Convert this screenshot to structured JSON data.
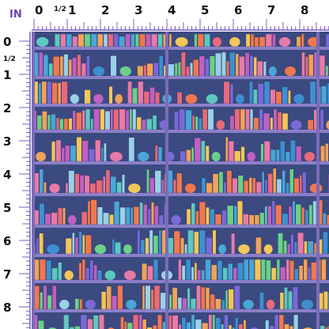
{
  "ruler": {
    "unit": "IN",
    "top_labels": [
      "0",
      "1/2",
      "1",
      "2",
      "3",
      "4",
      "5",
      "6",
      "7",
      "8"
    ],
    "left_labels": [
      "0",
      "1/2",
      "1",
      "2",
      "3",
      "4",
      "5",
      "6",
      "7",
      "8"
    ]
  }
}
